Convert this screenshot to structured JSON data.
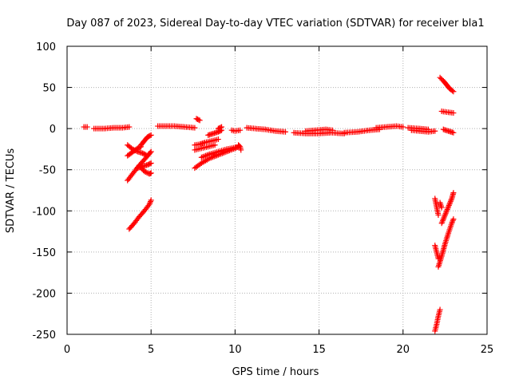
{
  "chart_data": {
    "type": "scatter",
    "title": "Day 087 of 2023, Sidereal Day-to-day VTEC variation (SDTVAR) for receiver bla1",
    "xlabel": "GPS time / hours",
    "ylabel": "SDTVAR / TECUs",
    "xlim": [
      0,
      25
    ],
    "ylim": [
      -250,
      100
    ],
    "xticks": [
      0,
      5,
      10,
      15,
      20,
      25
    ],
    "yticks": [
      -250,
      -200,
      -150,
      -100,
      -50,
      0,
      50,
      100
    ],
    "xtick_labels": [
      "0",
      "5",
      "10",
      "15",
      "20",
      "25"
    ],
    "ytick_labels": [
      "-250",
      "-200",
      "-150",
      "-100",
      "-50",
      "0",
      "50",
      "100"
    ],
    "grid": true,
    "marker": "plus",
    "series": [
      {
        "name": "SDTVAR",
        "color": "#ff0000",
        "segments": [
          [
            [
              1.0,
              2
            ],
            [
              1.2,
              2
            ]
          ],
          [
            [
              1.6,
              0
            ],
            [
              2.2,
              0
            ],
            [
              2.8,
              1
            ],
            [
              3.3,
              1
            ],
            [
              3.7,
              2
            ]
          ],
          [
            [
              3.6,
              -20
            ],
            [
              3.9,
              -25
            ],
            [
              4.2,
              -28
            ],
            [
              4.5,
              -30
            ],
            [
              4.7,
              -32
            ]
          ],
          [
            [
              3.6,
              -33
            ],
            [
              3.8,
              -30
            ],
            [
              4.0,
              -27
            ],
            [
              4.2,
              -24
            ],
            [
              4.4,
              -22
            ]
          ],
          [
            [
              3.6,
              -63
            ],
            [
              3.9,
              -55
            ],
            [
              4.2,
              -47
            ],
            [
              4.5,
              -40
            ],
            [
              4.8,
              -33
            ],
            [
              5.0,
              -28
            ]
          ],
          [
            [
              4.2,
              -48
            ],
            [
              4.5,
              -46
            ],
            [
              4.8,
              -44
            ],
            [
              5.0,
              -42
            ]
          ],
          [
            [
              4.3,
              -45
            ],
            [
              4.6,
              -52
            ],
            [
              4.9,
              -55
            ],
            [
              5.0,
              -54
            ]
          ],
          [
            [
              4.4,
              -20
            ],
            [
              4.6,
              -15
            ],
            [
              4.8,
              -10
            ],
            [
              5.0,
              -8
            ]
          ],
          [
            [
              3.7,
              -122
            ],
            [
              4.0,
              -115
            ],
            [
              4.3,
              -107
            ],
            [
              4.6,
              -100
            ],
            [
              4.9,
              -92
            ],
            [
              5.0,
              -87
            ]
          ],
          [
            [
              5.4,
              3
            ],
            [
              5.8,
              3
            ],
            [
              6.4,
              3
            ],
            [
              7.0,
              2
            ],
            [
              7.6,
              1
            ]
          ],
          [
            [
              7.7,
              12
            ],
            [
              7.9,
              10
            ]
          ],
          [
            [
              7.6,
              -20
            ],
            [
              7.9,
              -19
            ],
            [
              8.2,
              -17
            ],
            [
              8.6,
              -15
            ],
            [
              9.0,
              -13
            ]
          ],
          [
            [
              7.6,
              -26
            ],
            [
              8.0,
              -24
            ],
            [
              8.4,
              -22
            ],
            [
              8.8,
              -20
            ]
          ],
          [
            [
              7.6,
              -48
            ],
            [
              8.0,
              -42
            ],
            [
              8.5,
              -36
            ],
            [
              9.0,
              -32
            ],
            [
              9.5,
              -28
            ],
            [
              10.0,
              -24
            ],
            [
              10.2,
              -22
            ]
          ],
          [
            [
              8.0,
              -35
            ],
            [
              8.5,
              -31
            ],
            [
              9.0,
              -28
            ],
            [
              9.5,
              -25
            ],
            [
              10.0,
              -23
            ]
          ],
          [
            [
              8.4,
              -8
            ],
            [
              8.7,
              -6
            ],
            [
              9.0,
              -4
            ],
            [
              9.2,
              -2
            ]
          ],
          [
            [
              9.0,
              0
            ],
            [
              9.2,
              2
            ]
          ],
          [
            [
              9.8,
              -2
            ],
            [
              10.0,
              -3
            ],
            [
              10.3,
              -2
            ]
          ],
          [
            [
              10.2,
              -20
            ],
            [
              10.3,
              -22
            ],
            [
              10.35,
              -26
            ]
          ],
          [
            [
              10.7,
              1
            ],
            [
              11.2,
              0
            ],
            [
              11.8,
              -1
            ],
            [
              12.4,
              -3
            ],
            [
              13.0,
              -4
            ]
          ],
          [
            [
              13.5,
              -5
            ],
            [
              14.2,
              -6
            ],
            [
              15.0,
              -6
            ],
            [
              15.7,
              -5
            ],
            [
              16.5,
              -6
            ]
          ],
          [
            [
              14.2,
              -3
            ],
            [
              14.8,
              -2
            ],
            [
              15.4,
              -1
            ],
            [
              15.8,
              -2
            ]
          ],
          [
            [
              16.5,
              -5
            ],
            [
              17.3,
              -4
            ],
            [
              18.0,
              -2
            ],
            [
              18.6,
              -1
            ]
          ],
          [
            [
              18.4,
              1
            ],
            [
              19.0,
              2
            ],
            [
              19.6,
              3
            ],
            [
              20.0,
              2
            ]
          ],
          [
            [
              20.3,
              1
            ],
            [
              21.0,
              0
            ],
            [
              21.5,
              -1
            ]
          ],
          [
            [
              20.5,
              -2
            ],
            [
              21.0,
              -3
            ],
            [
              21.5,
              -4
            ],
            [
              21.9,
              -3
            ]
          ],
          [
            [
              22.2,
              62
            ],
            [
              22.4,
              58
            ],
            [
              22.6,
              53
            ],
            [
              22.8,
              48
            ],
            [
              23.0,
              45
            ]
          ],
          [
            [
              22.3,
              21
            ],
            [
              22.6,
              20
            ],
            [
              23.0,
              19
            ]
          ],
          [
            [
              22.4,
              -1
            ],
            [
              22.7,
              -3
            ],
            [
              23.0,
              -5
            ]
          ],
          [
            [
              21.9,
              -85
            ],
            [
              22.0,
              -95
            ],
            [
              22.1,
              -105
            ]
          ],
          [
            [
              22.2,
              -90
            ],
            [
              22.3,
              -96
            ]
          ],
          [
            [
              22.3,
              -115
            ],
            [
              22.5,
              -105
            ],
            [
              22.7,
              -95
            ],
            [
              22.9,
              -85
            ],
            [
              23.0,
              -78
            ]
          ],
          [
            [
              21.9,
              -142
            ],
            [
              22.0,
              -150
            ],
            [
              22.1,
              -158
            ]
          ],
          [
            [
              22.1,
              -168
            ],
            [
              22.3,
              -155
            ],
            [
              22.5,
              -140
            ],
            [
              22.7,
              -127
            ],
            [
              22.9,
              -115
            ],
            [
              23.0,
              -110
            ]
          ],
          [
            [
              21.9,
              -246
            ],
            [
              22.0,
              -238
            ],
            [
              22.1,
              -228
            ],
            [
              22.2,
              -220
            ]
          ]
        ]
      }
    ]
  }
}
